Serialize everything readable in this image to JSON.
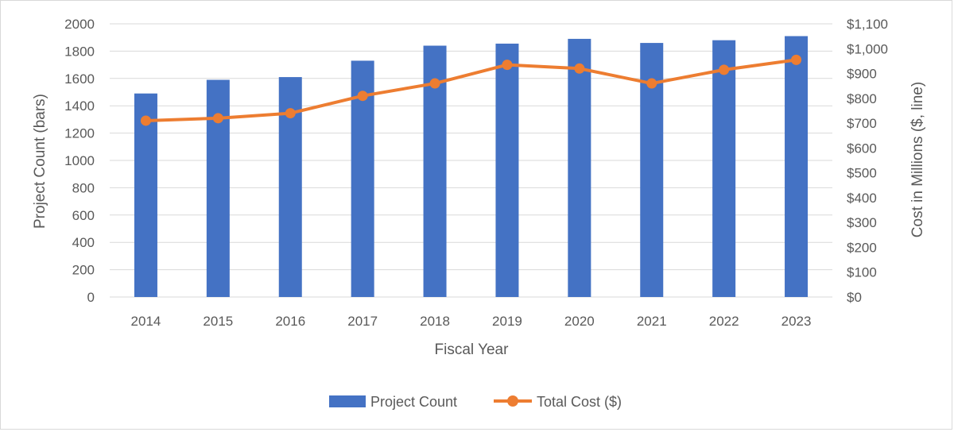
{
  "chart_data": {
    "type": "bar",
    "categories": [
      "2014",
      "2015",
      "2016",
      "2017",
      "2018",
      "2019",
      "2020",
      "2021",
      "2022",
      "2023"
    ],
    "series": [
      {
        "name": "Project Count",
        "type": "bar",
        "axis": "left",
        "color": "#4472C4",
        "values": [
          1490,
          1590,
          1610,
          1730,
          1840,
          1855,
          1890,
          1860,
          1880,
          1910
        ]
      },
      {
        "name": "Total Cost ($)",
        "type": "line",
        "axis": "right",
        "color": "#ED7D31",
        "values": [
          710,
          720,
          740,
          810,
          860,
          935,
          920,
          860,
          915,
          955
        ]
      }
    ],
    "xlabel": "Fiscal Year",
    "ylabel": "Project Count (bars)",
    "y2label": "Cost in Millions ($, line)",
    "ylim": [
      0,
      2000
    ],
    "y2lim": [
      0,
      1100
    ],
    "yticks": [
      "0",
      "200",
      "400",
      "600",
      "800",
      "1000",
      "1200",
      "1400",
      "1600",
      "1800",
      "2000"
    ],
    "y2ticks": [
      "$0",
      "$100",
      "$200",
      "$300",
      "$400",
      "$500",
      "$600",
      "$700",
      "$800",
      "$900",
      "$1,000",
      "$1,100"
    ],
    "grid": true,
    "legend_position": "bottom",
    "grid_color": "#d9d9d9"
  }
}
